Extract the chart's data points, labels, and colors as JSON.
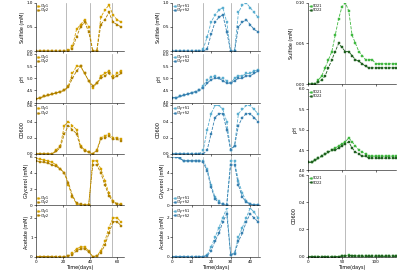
{
  "col1_color1": "#D4A000",
  "col1_color2": "#B08000",
  "col2_color1": "#5AAED0",
  "col2_color2": "#3880B0",
  "col3_color1": "#40B840",
  "col3_color2": "#206020",
  "col1_label1": "Gly1",
  "col1_label2": "Gly2",
  "col2_label1": "Gly+S1",
  "col2_label2": "Gly+S2",
  "col3_label1": "SO21",
  "col3_label2": "SO22",
  "col1_vlines": [
    22,
    40,
    56
  ],
  "col2_vlines": [
    16,
    30,
    44
  ],
  "col3_vlines": [
    55
  ],
  "col1_sulfide1_x": [
    0,
    3,
    6,
    9,
    12,
    15,
    18,
    21,
    24,
    27,
    30,
    33,
    36,
    39,
    42,
    45,
    48,
    51,
    54,
    57,
    60,
    63
  ],
  "col1_sulfide1_y": [
    0,
    0,
    0,
    0,
    0,
    0,
    0,
    0,
    0.02,
    0.1,
    0.45,
    0.55,
    0.65,
    0.5,
    0.0,
    0.0,
    0.7,
    0.85,
    0.95,
    0.75,
    0.65,
    0.6
  ],
  "col1_sulfide2_x": [
    0,
    3,
    6,
    9,
    12,
    15,
    18,
    21,
    24,
    27,
    30,
    33,
    36,
    39,
    42,
    45,
    48,
    51,
    54,
    57,
    60,
    63
  ],
  "col1_sulfide2_y": [
    0,
    0,
    0,
    0,
    0,
    0,
    0,
    0,
    0.01,
    0.05,
    0.3,
    0.5,
    0.6,
    0.4,
    0.0,
    0.0,
    0.55,
    0.65,
    0.8,
    0.6,
    0.55,
    0.5
  ],
  "col1_pH1_x": [
    0,
    3,
    6,
    9,
    12,
    15,
    18,
    21,
    24,
    27,
    30,
    33,
    36,
    39,
    42,
    45,
    48,
    51,
    54,
    57,
    60,
    63
  ],
  "col1_pH1_y": [
    4.15,
    4.2,
    4.25,
    4.3,
    4.35,
    4.4,
    4.45,
    4.5,
    4.7,
    5.2,
    5.5,
    5.5,
    5.2,
    4.9,
    4.6,
    4.8,
    5.1,
    5.2,
    5.3,
    5.1,
    5.2,
    5.3
  ],
  "col1_pH2_x": [
    0,
    3,
    6,
    9,
    12,
    15,
    18,
    21,
    24,
    27,
    30,
    33,
    36,
    39,
    42,
    45,
    48,
    51,
    54,
    57,
    60,
    63
  ],
  "col1_pH2_y": [
    4.15,
    4.2,
    4.25,
    4.3,
    4.35,
    4.4,
    4.45,
    4.5,
    4.65,
    5.0,
    5.3,
    5.5,
    5.2,
    4.9,
    4.7,
    4.8,
    5.0,
    5.1,
    5.2,
    5.0,
    5.1,
    5.2
  ],
  "col1_od1_x": [
    0,
    3,
    6,
    9,
    12,
    15,
    18,
    21,
    24,
    27,
    30,
    33,
    36,
    39,
    42,
    45,
    48,
    51,
    54,
    57,
    60,
    63
  ],
  "col1_od1_y": [
    0,
    0,
    0,
    0,
    0,
    0.05,
    0.1,
    0.35,
    0.4,
    0.35,
    0.3,
    0.1,
    0.05,
    0.02,
    0.0,
    0.05,
    0.2,
    0.22,
    0.25,
    0.2,
    0.2,
    0.18
  ],
  "col1_od2_x": [
    0,
    3,
    6,
    9,
    12,
    15,
    18,
    21,
    24,
    27,
    30,
    33,
    36,
    39,
    42,
    45,
    48,
    51,
    54,
    57,
    60,
    63
  ],
  "col1_od2_y": [
    0,
    0,
    0,
    0,
    0,
    0.03,
    0.08,
    0.25,
    0.35,
    0.3,
    0.25,
    0.08,
    0.04,
    0.02,
    0.0,
    0.04,
    0.18,
    0.2,
    0.22,
    0.18,
    0.18,
    0.16
  ],
  "col1_gly1_x": [
    0,
    3,
    6,
    9,
    12,
    15,
    18,
    21,
    24,
    27,
    30,
    33,
    36,
    39,
    42,
    45,
    48,
    51,
    54,
    57,
    60,
    63
  ],
  "col1_gly1_y": [
    5.8,
    5.7,
    5.6,
    5.5,
    5.3,
    5.0,
    4.5,
    4.0,
    2.5,
    1.0,
    0.2,
    0.05,
    0.05,
    0.05,
    5.5,
    5.5,
    4.5,
    3.0,
    1.5,
    0.5,
    0.2,
    0.1
  ],
  "col1_gly2_x": [
    0,
    3,
    6,
    9,
    12,
    15,
    18,
    21,
    24,
    27,
    30,
    33,
    36,
    39,
    42,
    45,
    48,
    51,
    54,
    57,
    60,
    63
  ],
  "col1_gly2_y": [
    5.5,
    5.4,
    5.3,
    5.2,
    5.0,
    4.8,
    4.5,
    4.0,
    2.8,
    1.2,
    0.3,
    0.1,
    0.05,
    0.05,
    5.0,
    5.0,
    4.0,
    2.5,
    1.2,
    0.4,
    0.15,
    0.05
  ],
  "col1_ace1_x": [
    0,
    3,
    6,
    9,
    12,
    15,
    18,
    21,
    24,
    27,
    30,
    33,
    36,
    39,
    42,
    45,
    48,
    51,
    54,
    57,
    60,
    63
  ],
  "col1_ace1_y": [
    0,
    0,
    0,
    0,
    0,
    0,
    0,
    0,
    0.05,
    0.2,
    0.4,
    0.5,
    0.5,
    0.3,
    0.0,
    0.05,
    0.3,
    0.8,
    1.5,
    2.0,
    2.0,
    1.8
  ],
  "col1_ace2_x": [
    0,
    3,
    6,
    9,
    12,
    15,
    18,
    21,
    24,
    27,
    30,
    33,
    36,
    39,
    42,
    45,
    48,
    51,
    54,
    57,
    60,
    63
  ],
  "col1_ace2_y": [
    0,
    0,
    0,
    0,
    0,
    0,
    0,
    0,
    0.03,
    0.1,
    0.3,
    0.4,
    0.4,
    0.25,
    0.0,
    0.03,
    0.2,
    0.6,
    1.2,
    1.8,
    1.8,
    1.6
  ],
  "col2_sulfide1_x": [
    0,
    2,
    4,
    6,
    8,
    10,
    12,
    14,
    16,
    18,
    20,
    22,
    24,
    26,
    28,
    30,
    32,
    34,
    36,
    38,
    40,
    42,
    44
  ],
  "col2_sulfide1_y": [
    0,
    0,
    0,
    0,
    0,
    0,
    0,
    0,
    0.05,
    0.3,
    0.6,
    0.75,
    0.85,
    0.9,
    0.6,
    0.0,
    0.0,
    0.8,
    0.95,
    1.0,
    0.9,
    0.8,
    0.7
  ],
  "col2_sulfide2_x": [
    0,
    2,
    4,
    6,
    8,
    10,
    12,
    14,
    16,
    18,
    20,
    22,
    24,
    26,
    28,
    30,
    32,
    34,
    36,
    38,
    40,
    42,
    44
  ],
  "col2_sulfide2_y": [
    0,
    0,
    0,
    0,
    0,
    0,
    0,
    0,
    0.0,
    0.05,
    0.35,
    0.6,
    0.7,
    0.75,
    0.4,
    0.0,
    0.0,
    0.5,
    0.6,
    0.65,
    0.55,
    0.45,
    0.4
  ],
  "col2_pH1_x": [
    0,
    2,
    4,
    6,
    8,
    10,
    12,
    14,
    16,
    18,
    20,
    22,
    24,
    26,
    28,
    30,
    32,
    34,
    36,
    38,
    40,
    42,
    44
  ],
  "col2_pH1_y": [
    4.2,
    4.2,
    4.25,
    4.3,
    4.35,
    4.4,
    4.45,
    4.5,
    4.7,
    4.95,
    5.05,
    5.1,
    5.0,
    5.0,
    4.9,
    4.8,
    5.0,
    5.1,
    5.1,
    5.2,
    5.2,
    5.3,
    5.35
  ],
  "col2_pH2_x": [
    0,
    2,
    4,
    6,
    8,
    10,
    12,
    14,
    16,
    18,
    20,
    22,
    24,
    26,
    28,
    30,
    32,
    34,
    36,
    38,
    40,
    42,
    44
  ],
  "col2_pH2_y": [
    4.2,
    4.2,
    4.25,
    4.3,
    4.35,
    4.4,
    4.45,
    4.5,
    4.6,
    4.8,
    4.95,
    5.0,
    5.0,
    4.9,
    4.8,
    4.8,
    4.9,
    5.0,
    5.0,
    5.1,
    5.1,
    5.2,
    5.3
  ],
  "col2_od1_x": [
    0,
    2,
    4,
    6,
    8,
    10,
    12,
    14,
    16,
    18,
    20,
    22,
    24,
    26,
    28,
    30,
    32,
    34,
    36,
    38,
    40,
    42,
    44
  ],
  "col2_od1_y": [
    0,
    0,
    0,
    0,
    0,
    0,
    0,
    0,
    0.05,
    0.3,
    0.5,
    0.6,
    0.6,
    0.55,
    0.4,
    0.05,
    0.1,
    0.5,
    0.55,
    0.6,
    0.6,
    0.55,
    0.5
  ],
  "col2_od2_x": [
    0,
    2,
    4,
    6,
    8,
    10,
    12,
    14,
    16,
    18,
    20,
    22,
    24,
    26,
    28,
    30,
    32,
    34,
    36,
    38,
    40,
    42,
    44
  ],
  "col2_od2_y": [
    0,
    0,
    0,
    0,
    0,
    0,
    0,
    0,
    0.0,
    0.05,
    0.25,
    0.45,
    0.5,
    0.5,
    0.3,
    0.05,
    0.1,
    0.35,
    0.45,
    0.5,
    0.5,
    0.45,
    0.4
  ],
  "col2_gly1_x": [
    0,
    2,
    4,
    6,
    8,
    10,
    12,
    14,
    16,
    18,
    20,
    22,
    24,
    26,
    28,
    30,
    32,
    34,
    36,
    38,
    40,
    42,
    44
  ],
  "col2_gly1_y": [
    6,
    6,
    5.8,
    5.5,
    5.5,
    5.5,
    5.5,
    5.5,
    5.5,
    4.5,
    2.5,
    1.0,
    0.5,
    0.1,
    0.05,
    5.5,
    5.5,
    3.0,
    1.5,
    0.5,
    0.15,
    0.05,
    0.05
  ],
  "col2_gly2_x": [
    0,
    2,
    4,
    6,
    8,
    10,
    12,
    14,
    16,
    18,
    20,
    22,
    24,
    26,
    28,
    30,
    32,
    34,
    36,
    38,
    40,
    42,
    44
  ],
  "col2_gly2_y": [
    6,
    6,
    5.8,
    5.5,
    5.5,
    5.5,
    5.5,
    5.5,
    5.3,
    4.2,
    2.2,
    0.8,
    0.3,
    0.1,
    0.05,
    5.0,
    5.0,
    2.5,
    1.0,
    0.4,
    0.1,
    0.05,
    0.05
  ],
  "col2_ace1_x": [
    0,
    2,
    4,
    6,
    8,
    10,
    12,
    14,
    16,
    18,
    20,
    22,
    24,
    26,
    28,
    30,
    32,
    34,
    36,
    38,
    40,
    42,
    44
  ],
  "col2_ace1_y": [
    0,
    0,
    0,
    0,
    0,
    0,
    0,
    0,
    0,
    0.1,
    0.5,
    1.0,
    1.5,
    2.0,
    2.5,
    0.1,
    0.2,
    1.0,
    1.5,
    2.0,
    2.5,
    2.3,
    2.0
  ],
  "col2_ace2_x": [
    0,
    2,
    4,
    6,
    8,
    10,
    12,
    14,
    16,
    18,
    20,
    22,
    24,
    26,
    28,
    30,
    32,
    34,
    36,
    38,
    40,
    42,
    44
  ],
  "col2_ace2_y": [
    0,
    0,
    0,
    0,
    0,
    0,
    0,
    0,
    0,
    0.05,
    0.3,
    0.8,
    1.2,
    1.8,
    2.2,
    0.1,
    0.15,
    0.8,
    1.2,
    1.8,
    2.2,
    2.0,
    1.8
  ],
  "col3_sulfide1_x": [
    0,
    5,
    10,
    15,
    20,
    25,
    30,
    35,
    40,
    45,
    50,
    55,
    60,
    65,
    70,
    75,
    80,
    85,
    90,
    95,
    100,
    105,
    110,
    115,
    120,
    125,
    130
  ],
  "col3_sulfide1_y": [
    0,
    0,
    0,
    0.005,
    0.01,
    0.02,
    0.03,
    0.04,
    0.06,
    0.08,
    0.095,
    0.1,
    0.09,
    0.06,
    0.05,
    0.04,
    0.035,
    0.03,
    0.03,
    0.03,
    0.025,
    0.025,
    0.025,
    0.025,
    0.025,
    0.025,
    0.025
  ],
  "col3_sulfide2_x": [
    0,
    5,
    10,
    15,
    20,
    25,
    30,
    35,
    40,
    45,
    50,
    55,
    60,
    65,
    70,
    75,
    80,
    85,
    90,
    95,
    100,
    105,
    110,
    115,
    120,
    125,
    130
  ],
  "col3_sulfide2_y": [
    0,
    0,
    0,
    0.002,
    0.005,
    0.01,
    0.02,
    0.03,
    0.04,
    0.05,
    0.045,
    0.04,
    0.04,
    0.035,
    0.03,
    0.028,
    0.025,
    0.022,
    0.02,
    0.02,
    0.02,
    0.02,
    0.02,
    0.02,
    0.02,
    0.02,
    0.02
  ],
  "col3_pH1_x": [
    0,
    5,
    10,
    15,
    20,
    25,
    30,
    35,
    40,
    45,
    50,
    55,
    60,
    65,
    70,
    75,
    80,
    85,
    90,
    95,
    100,
    105,
    110,
    115,
    120,
    125,
    130
  ],
  "col3_pH1_y": [
    4.2,
    4.2,
    4.25,
    4.3,
    4.35,
    4.4,
    4.45,
    4.5,
    4.55,
    4.6,
    4.65,
    4.7,
    4.8,
    4.7,
    4.6,
    4.5,
    4.45,
    4.4,
    4.35,
    4.35,
    4.35,
    4.35,
    4.35,
    4.35,
    4.35,
    4.35,
    4.35
  ],
  "col3_pH2_x": [
    0,
    5,
    10,
    15,
    20,
    25,
    30,
    35,
    40,
    45,
    50,
    55,
    60,
    65,
    70,
    75,
    80,
    85,
    90,
    95,
    100,
    105,
    110,
    115,
    120,
    125,
    130
  ],
  "col3_pH2_y": [
    4.2,
    4.2,
    4.25,
    4.3,
    4.35,
    4.4,
    4.45,
    4.5,
    4.5,
    4.55,
    4.6,
    4.65,
    4.7,
    4.55,
    4.45,
    4.4,
    4.35,
    4.35,
    4.3,
    4.3,
    4.3,
    4.3,
    4.3,
    4.3,
    4.3,
    4.3,
    4.3
  ],
  "col3_od1_x": [
    0,
    5,
    10,
    15,
    20,
    25,
    30,
    35,
    40,
    45,
    50,
    55,
    60,
    65,
    70,
    75,
    80,
    85,
    90,
    95,
    100,
    105,
    110,
    115,
    120,
    125,
    130
  ],
  "col3_od1_y": [
    0,
    0,
    0,
    0,
    0,
    0,
    0,
    0,
    0,
    0,
    0.005,
    0.008,
    0.01,
    0.008,
    0.006,
    0.005,
    0.004,
    0.003,
    0.003,
    0.003,
    0.003,
    0.003,
    0.003,
    0.003,
    0.003,
    0.003,
    0.003
  ],
  "col3_od2_x": [
    0,
    5,
    10,
    15,
    20,
    25,
    30,
    35,
    40,
    45,
    50,
    55,
    60,
    65,
    70,
    75,
    80,
    85,
    90,
    95,
    100,
    105,
    110,
    115,
    120,
    125,
    130
  ],
  "col3_od2_y": [
    0,
    0,
    0,
    0,
    0,
    0,
    0,
    0,
    0,
    0,
    0.003,
    0.005,
    0.008,
    0.006,
    0.004,
    0.003,
    0.002,
    0.002,
    0.002,
    0.002,
    0.002,
    0.002,
    0.002,
    0.002,
    0.002,
    0.002,
    0.002
  ],
  "ylim_sulfide_col1": [
    0,
    1.0
  ],
  "ylim_pH_col1": [
    4.0,
    6.0
  ],
  "ylim_od_col1": [
    0,
    0.6
  ],
  "ylim_gly_col1": [
    0,
    6
  ],
  "ylim_ace_col1": [
    0,
    2.5
  ],
  "ylim_sulfide_col2": [
    0,
    1.0
  ],
  "ylim_pH_col2": [
    4.0,
    6.0
  ],
  "ylim_od_col2": [
    0,
    0.6
  ],
  "ylim_gly_col2": [
    0,
    6
  ],
  "ylim_ace_col2": [
    0,
    2.5
  ],
  "ylim_sulfide_col3": [
    0,
    0.1
  ],
  "ylim_pH_col3": [
    4.0,
    6.0
  ],
  "ylim_od_col3": [
    0,
    0.6
  ],
  "xlabel": "Time(days)",
  "ylabel_sulfide": "Sulfide (mM)",
  "ylabel_pH": "pH",
  "ylabel_od": "OD600",
  "ylabel_gly": "Glycerol (mM)",
  "ylabel_ace": "Acetate (mM)",
  "xlim_col1": [
    0,
    65
  ],
  "xlim_col2": [
    0,
    45
  ],
  "xlim_col3": [
    0,
    130
  ],
  "xticks_col1": [
    0,
    20,
    40,
    60
  ],
  "xticks_col2": [
    0,
    10,
    20,
    30,
    40
  ],
  "xticks_col3": [
    0,
    50,
    100
  ],
  "bg_color": "#ffffff",
  "marker": "s",
  "markersize": 1.8,
  "linewidth": 0.6,
  "linestyle": "--"
}
